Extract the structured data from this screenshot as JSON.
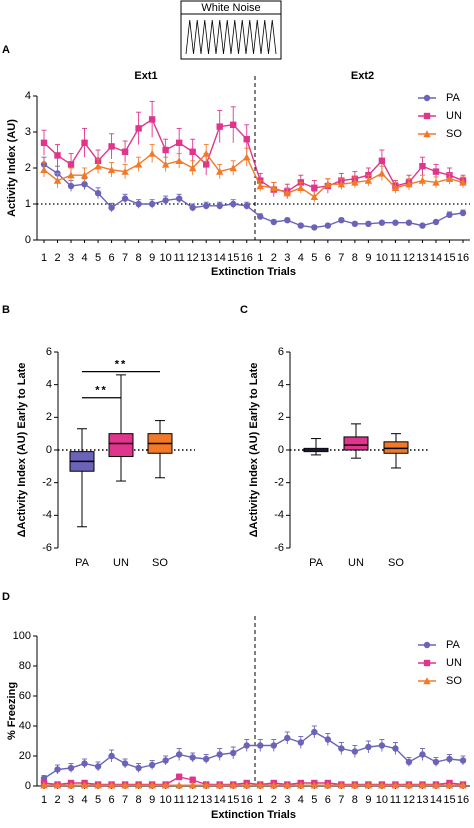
{
  "stimulus": {
    "label": "White Noise"
  },
  "chart_data": [
    {
      "panel": "A",
      "type": "line",
      "section_labels": [
        "Ext1",
        "Ext2"
      ],
      "xlabel": "Extinction Trials",
      "ylabel": "Activity Index (AU)",
      "categories": [
        "1",
        "2",
        "3",
        "4",
        "5",
        "6",
        "7",
        "8",
        "9",
        "10",
        "11",
        "12",
        "13",
        "14",
        "15",
        "16",
        "1",
        "2",
        "3",
        "4",
        "5",
        "6",
        "7",
        "8",
        "9",
        "10",
        "11",
        "12",
        "13",
        "14",
        "15",
        "16"
      ],
      "ylim": [
        0,
        4
      ],
      "yticks": [
        0,
        1,
        2,
        3,
        4
      ],
      "reference_line": 1,
      "legend": "upper right",
      "series": [
        {
          "name": "PA",
          "color": "#6b63b8",
          "marker": "circle",
          "values": [
            2.1,
            1.85,
            1.5,
            1.55,
            1.3,
            0.9,
            1.15,
            1.0,
            1.0,
            1.1,
            1.15,
            0.9,
            0.95,
            0.95,
            1.0,
            0.95,
            0.65,
            0.5,
            0.55,
            0.4,
            0.35,
            0.4,
            0.55,
            0.45,
            0.45,
            0.48,
            0.48,
            0.48,
            0.4,
            0.5,
            0.7,
            0.75
          ],
          "errors": [
            0.2,
            0.2,
            0.15,
            0.15,
            0.15,
            0.12,
            0.12,
            0.12,
            0.12,
            0.12,
            0.12,
            0.1,
            0.1,
            0.1,
            0.12,
            0.1,
            0.08,
            0.06,
            0.06,
            0.05,
            0.05,
            0.05,
            0.06,
            0.05,
            0.05,
            0.05,
            0.05,
            0.05,
            0.05,
            0.05,
            0.08,
            0.08
          ]
        },
        {
          "name": "UN",
          "color": "#e0358c",
          "marker": "square",
          "values": [
            2.7,
            2.35,
            2.1,
            2.7,
            2.2,
            2.6,
            2.45,
            3.1,
            3.35,
            2.5,
            2.7,
            2.45,
            2.1,
            3.15,
            3.2,
            2.8,
            1.65,
            1.4,
            1.35,
            1.6,
            1.45,
            1.5,
            1.65,
            1.7,
            1.8,
            2.2,
            1.5,
            1.6,
            2.05,
            1.9,
            1.8,
            1.65
          ],
          "errors": [
            0.35,
            0.3,
            0.3,
            0.4,
            0.3,
            0.35,
            0.3,
            0.45,
            0.5,
            0.3,
            0.4,
            0.35,
            0.3,
            0.45,
            0.5,
            0.4,
            0.2,
            0.2,
            0.2,
            0.2,
            0.2,
            0.2,
            0.2,
            0.2,
            0.2,
            0.3,
            0.15,
            0.2,
            0.25,
            0.2,
            0.2,
            0.15
          ]
        },
        {
          "name": "SO",
          "color": "#f07a2a",
          "marker": "triangle",
          "values": [
            1.95,
            1.65,
            1.8,
            1.8,
            2.05,
            1.95,
            1.9,
            2.1,
            2.4,
            2.1,
            2.2,
            2.0,
            2.4,
            1.9,
            2.0,
            2.3,
            1.5,
            1.45,
            1.3,
            1.45,
            1.2,
            1.55,
            1.55,
            1.6,
            1.65,
            1.85,
            1.45,
            1.55,
            1.65,
            1.6,
            1.7,
            1.6
          ],
          "errors": [
            0.2,
            0.2,
            0.2,
            0.2,
            0.2,
            0.2,
            0.2,
            0.2,
            0.25,
            0.2,
            0.2,
            0.2,
            0.25,
            0.2,
            0.2,
            0.25,
            0.15,
            0.15,
            0.15,
            0.15,
            0.15,
            0.15,
            0.15,
            0.15,
            0.15,
            0.2,
            0.15,
            0.15,
            0.15,
            0.15,
            0.15,
            0.15
          ]
        }
      ]
    },
    {
      "panel": "B",
      "type": "box",
      "ylabel": "ΔActivity Index (AU) Early to Late",
      "categories": [
        "PA",
        "UN",
        "SO"
      ],
      "colors": [
        "#6b63b8",
        "#e0358c",
        "#f07a2a"
      ],
      "ylim": [
        -6,
        6
      ],
      "yticks": [
        -6,
        -4,
        -2,
        0,
        2,
        4,
        6
      ],
      "reference_line": 0,
      "boxes": [
        {
          "min": -4.7,
          "q1": -1.3,
          "median": -0.7,
          "q3": -0.1,
          "max": 1.3
        },
        {
          "min": -1.9,
          "q1": -0.4,
          "median": 0.4,
          "q3": 1.0,
          "max": 4.6
        },
        {
          "min": -1.7,
          "q1": -0.2,
          "median": 0.4,
          "q3": 1.0,
          "max": 1.8
        }
      ],
      "annotations": [
        {
          "text": "**",
          "from": 0,
          "to": 1,
          "y": 3.2
        },
        {
          "text": "**",
          "from": 0,
          "to": 2,
          "y": 4.8
        }
      ]
    },
    {
      "panel": "C",
      "type": "box",
      "ylabel": "ΔActivity Index (AU) Early to Late",
      "categories": [
        "PA",
        "UN",
        "SO"
      ],
      "colors": [
        "#6b63b8",
        "#e0358c",
        "#f07a2a"
      ],
      "ylim": [
        -6,
        6
      ],
      "yticks": [
        -6,
        -4,
        -2,
        0,
        2,
        4,
        6
      ],
      "reference_line": 0,
      "boxes": [
        {
          "min": -0.3,
          "q1": -0.1,
          "median": 0.0,
          "q3": 0.1,
          "max": 0.7
        },
        {
          "min": -0.5,
          "q1": 0.0,
          "median": 0.3,
          "q3": 0.8,
          "max": 1.6
        },
        {
          "min": -1.1,
          "q1": -0.2,
          "median": 0.1,
          "q3": 0.5,
          "max": 1.0
        }
      ]
    },
    {
      "panel": "D",
      "type": "line",
      "xlabel": "Extinction Trials",
      "ylabel": "% Freezing",
      "categories": [
        "1",
        "2",
        "3",
        "4",
        "5",
        "6",
        "7",
        "8",
        "9",
        "10",
        "11",
        "12",
        "13",
        "14",
        "15",
        "16",
        "1",
        "2",
        "3",
        "4",
        "5",
        "6",
        "7",
        "8",
        "9",
        "10",
        "11",
        "12",
        "13",
        "14",
        "15",
        "16"
      ],
      "ylim": [
        0,
        100
      ],
      "yticks": [
        0,
        20,
        40,
        60,
        80,
        100
      ],
      "legend": "upper right",
      "series": [
        {
          "name": "PA",
          "color": "#6b63b8",
          "marker": "circle",
          "values": [
            5,
            11,
            12,
            15,
            13,
            20,
            15,
            12,
            14,
            17,
            21,
            19,
            18,
            21,
            22,
            27,
            27,
            27,
            32,
            29,
            36,
            31,
            25,
            23,
            26,
            27,
            25,
            16,
            21,
            16,
            18,
            17
          ],
          "errors": [
            2,
            3,
            3,
            3,
            3,
            4,
            3,
            3,
            3,
            3,
            4,
            3,
            3,
            4,
            4,
            4,
            4,
            4,
            4,
            4,
            4,
            4,
            4,
            4,
            4,
            4,
            4,
            3,
            4,
            3,
            3,
            3
          ]
        },
        {
          "name": "UN",
          "color": "#e0358c",
          "marker": "square",
          "values": [
            2,
            1,
            2,
            2,
            1,
            1,
            1,
            1,
            1,
            1,
            6,
            4,
            1,
            1,
            1,
            2,
            1,
            2,
            1,
            2,
            2,
            2,
            1,
            1,
            1,
            1,
            1,
            1,
            1,
            1,
            2,
            1
          ],
          "errors": [
            1,
            1,
            1,
            1,
            1,
            1,
            1,
            1,
            1,
            1,
            2,
            2,
            1,
            1,
            1,
            1,
            1,
            1,
            1,
            1,
            1,
            1,
            1,
            1,
            1,
            1,
            1,
            1,
            1,
            1,
            1,
            1
          ]
        },
        {
          "name": "SO",
          "color": "#f07a2a",
          "marker": "triangle",
          "values": [
            0.5,
            0.5,
            0.5,
            0.5,
            0.5,
            0.5,
            0.5,
            0.5,
            0.5,
            0.5,
            0.5,
            0.5,
            0.5,
            0.5,
            0.5,
            0.5,
            0.5,
            0.5,
            0.5,
            0.5,
            0.5,
            0.5,
            0.5,
            0.5,
            0.5,
            0.5,
            0.5,
            0.5,
            0.5,
            0.5,
            0.5,
            0.5
          ],
          "errors": [
            0.3,
            0.3,
            0.3,
            0.3,
            0.3,
            0.3,
            0.3,
            0.3,
            0.3,
            0.3,
            0.3,
            0.3,
            0.3,
            0.3,
            0.3,
            0.3,
            0.3,
            0.3,
            0.3,
            0.3,
            0.3,
            0.3,
            0.3,
            0.3,
            0.3,
            0.3,
            0.3,
            0.3,
            0.3,
            0.3,
            0.3,
            0.3
          ]
        }
      ]
    }
  ]
}
